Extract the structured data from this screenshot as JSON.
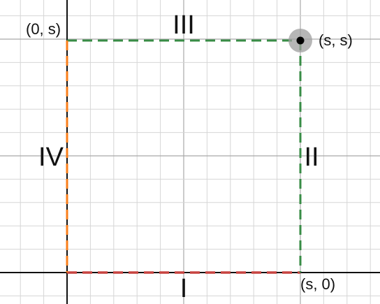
{
  "points": {
    "origin_top": "(0, s)",
    "corner": "(s, s)",
    "bottom_right": "(s, 0)"
  },
  "sides": {
    "bottom": "I",
    "right": "II",
    "top": "III",
    "left": "IV"
  },
  "colors": {
    "grid_minor": "#d6d6d6",
    "grid_major": "#a9a9a9",
    "axis": "#111111",
    "bottom_edge": "#c74440",
    "right_edge": "#388c46",
    "top_edge": "#388c46",
    "left_edge": "#fa7e19",
    "point": "#000000",
    "point_halo": "#9e9e9e"
  }
}
